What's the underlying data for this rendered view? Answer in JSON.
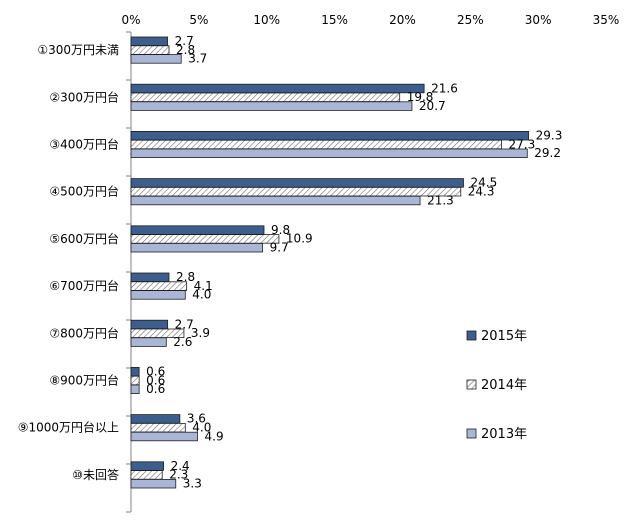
{
  "chart_data": {
    "type": "bar",
    "orientation": "horizontal",
    "title": "",
    "xlabel": "",
    "ylabel": "",
    "xlim": [
      0,
      35
    ],
    "ticks": [
      "0%",
      "5%",
      "10%",
      "15%",
      "20%",
      "25%",
      "30%",
      "35%"
    ],
    "categories": [
      "①300万円未満",
      "②300万円台",
      "③400万円台",
      "④500万円台",
      "⑤600万円台",
      "⑥700万円台",
      "⑦800万円台",
      "⑧900万円台",
      "⑨1000万円台以上",
      "⑩未回答"
    ],
    "series": [
      {
        "name": "2015年",
        "values": [
          2.7,
          21.6,
          29.3,
          24.5,
          9.8,
          2.8,
          2.7,
          0.6,
          3.6,
          2.4
        ],
        "color": "#3d5d8c",
        "pattern": "solid"
      },
      {
        "name": "2014年",
        "values": [
          2.8,
          19.8,
          27.3,
          24.3,
          10.9,
          4.1,
          3.9,
          0.6,
          4.0,
          2.3
        ],
        "color": "#ffffff",
        "pattern": "hatch"
      },
      {
        "name": "2013年",
        "values": [
          3.7,
          20.7,
          29.2,
          21.3,
          9.7,
          4.0,
          2.6,
          0.6,
          4.9,
          3.3
        ],
        "color": "#aab6d6",
        "pattern": "solid"
      }
    ],
    "legend_position": "right"
  }
}
